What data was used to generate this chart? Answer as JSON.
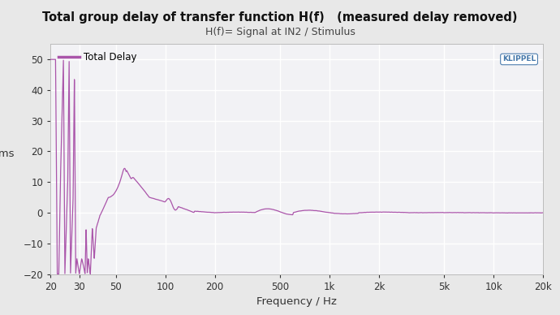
{
  "title": "Total group delay of transfer function H(f)   (measured delay removed)",
  "subtitle": "H(f)= Signal at IN2 / Stimulus",
  "ylabel": "/ ms",
  "xlabel": "Frequency / Hz",
  "legend_label": "Total Delay",
  "line_color": "#AA55AA",
  "bg_color": "#E8E8E8",
  "plot_bg_color": "#F2F2F5",
  "grid_color": "#FFFFFF",
  "ylim": [
    -20,
    55
  ],
  "yticks": [
    -20,
    -10,
    0,
    10,
    20,
    30,
    40,
    50
  ],
  "freq_min": 20,
  "freq_max": 20000,
  "xtick_positions": [
    20,
    30,
    50,
    100,
    200,
    500,
    1000,
    2000,
    5000,
    10000,
    20000
  ],
  "xtick_labels": [
    "20",
    "30",
    "50",
    "100",
    "200",
    "500",
    "1k",
    "2k",
    "5k",
    "10k",
    "20k"
  ],
  "klippel_text": "KLIPPEL",
  "klippel_color": "#4477AA"
}
